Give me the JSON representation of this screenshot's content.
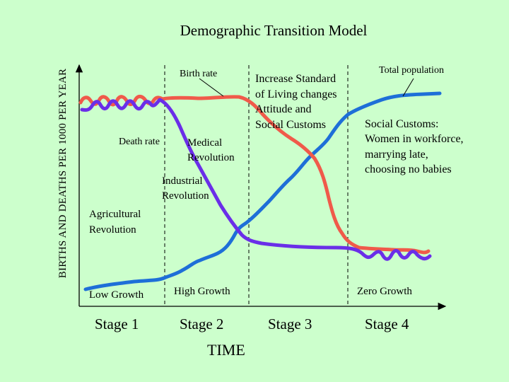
{
  "title": "Demographic Transition Model",
  "y_axis_label": "BIRTHS AND DEATHS PER 1000 PER YEAR",
  "x_axis_label": "TIME",
  "stages": [
    "Stage 1",
    "Stage 2",
    "Stage 3",
    "Stage 4"
  ],
  "growth_labels": [
    "Low Growth",
    "High Growth",
    "Zero Growth"
  ],
  "annotations": {
    "birth_rate": "Birth rate",
    "death_rate": "Death rate",
    "total_population": "Total  population",
    "medical_revolution": [
      "Medical",
      "Revolution"
    ],
    "industrial_revolution": [
      "Industrial",
      "Revolution"
    ],
    "agricultural_revolution": [
      "Agricultural",
      "Revolution"
    ],
    "increase_standard": [
      "Increase Standard",
      "of Living changes",
      "Attitude and",
      "Social Customs"
    ],
    "social_customs": [
      "Social Customs:",
      "Women in workforce,",
      "marrying late,",
      "choosing no babies"
    ]
  },
  "colors": {
    "background": "#ccffcc",
    "birth_rate": "#f05a4a",
    "death_rate": "#6a2ee8",
    "total_population": "#1e6fd8",
    "axis": "#000000",
    "stage_divider": "#000000"
  }
}
